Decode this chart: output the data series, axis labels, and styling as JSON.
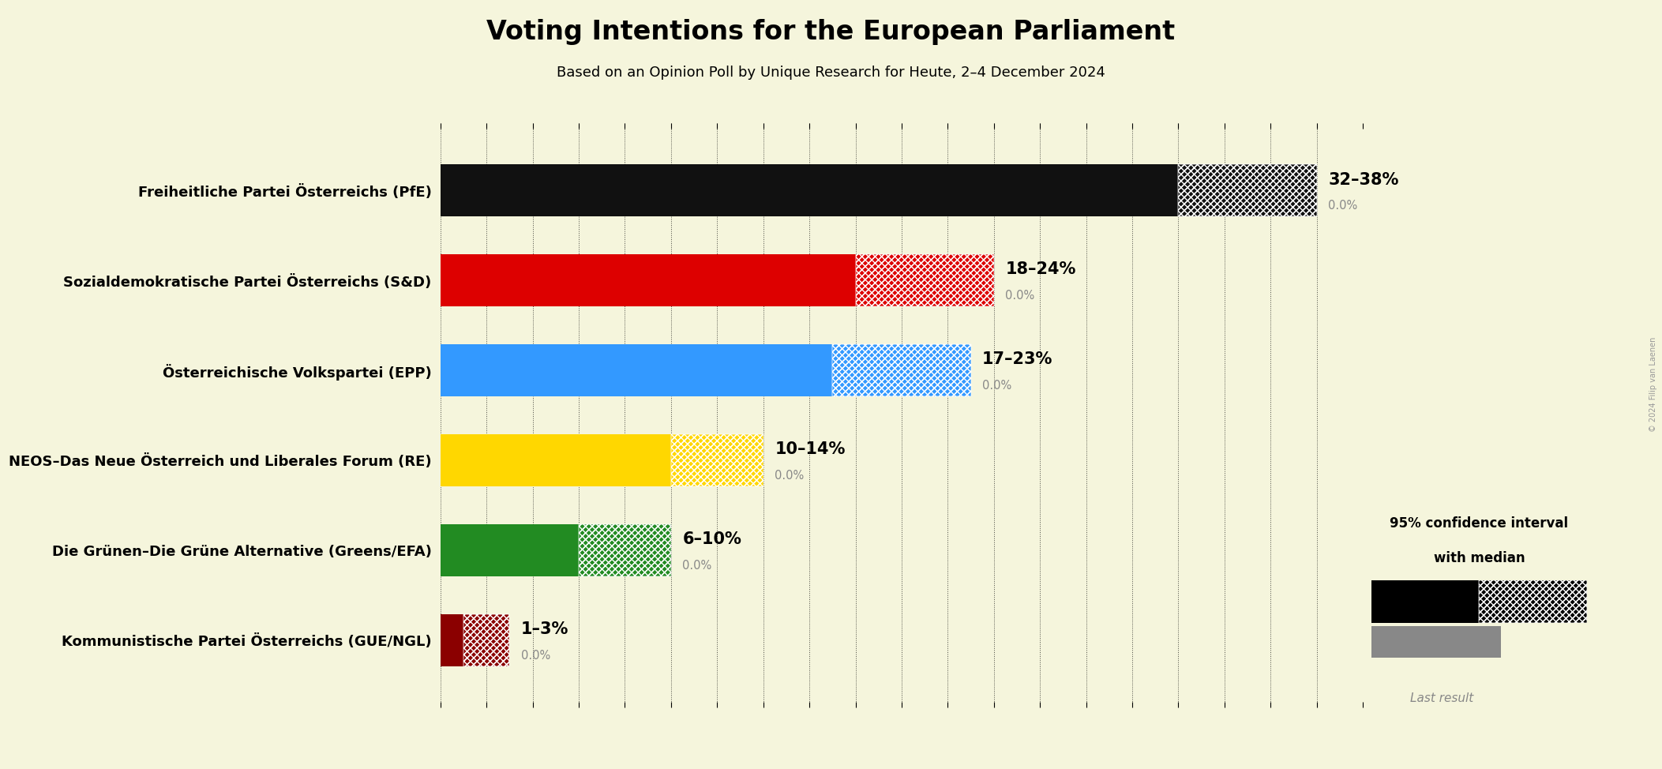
{
  "title": "Voting Intentions for the European Parliament",
  "subtitle": "Based on an Opinion Poll by Unique Research for Heute, 2–4 December 2024",
  "background_color": "#F5F5DC",
  "parties": [
    "Freiheitliche Partei Österreichs (PfE)",
    "Sozialdemokratische Partei Österreichs (S&D)",
    "Österreichische Volkspartei (EPP)",
    "NEOS–Das Neue Österreich und Liberales Forum (RE)",
    "Die Grünen–Die Grüne Alternative (Greens/EFA)",
    "Kommunistische Partei Österreichs (GUE/NGL)"
  ],
  "median_values": [
    32,
    18,
    17,
    10,
    6,
    1
  ],
  "ci_high": [
    38,
    24,
    23,
    14,
    10,
    3
  ],
  "last_results": [
    0.0,
    0.0,
    0.0,
    0.0,
    0.0,
    0.0
  ],
  "colors": [
    "#111111",
    "#DD0000",
    "#3399FF",
    "#FFD700",
    "#228B22",
    "#8B0000"
  ],
  "range_labels": [
    "32–38%",
    "18–24%",
    "17–23%",
    "10–14%",
    "6–10%",
    "1–3%"
  ],
  "last_result_labels": [
    "0.0%",
    "0.0%",
    "0.0%",
    "0.0%",
    "0.0%",
    "0.0%"
  ],
  "xmax": 40,
  "legend_text_1": "95% confidence interval",
  "legend_text_2": "with median",
  "legend_last": "Last result",
  "copyright": "© 2024 Filip van Laenen"
}
